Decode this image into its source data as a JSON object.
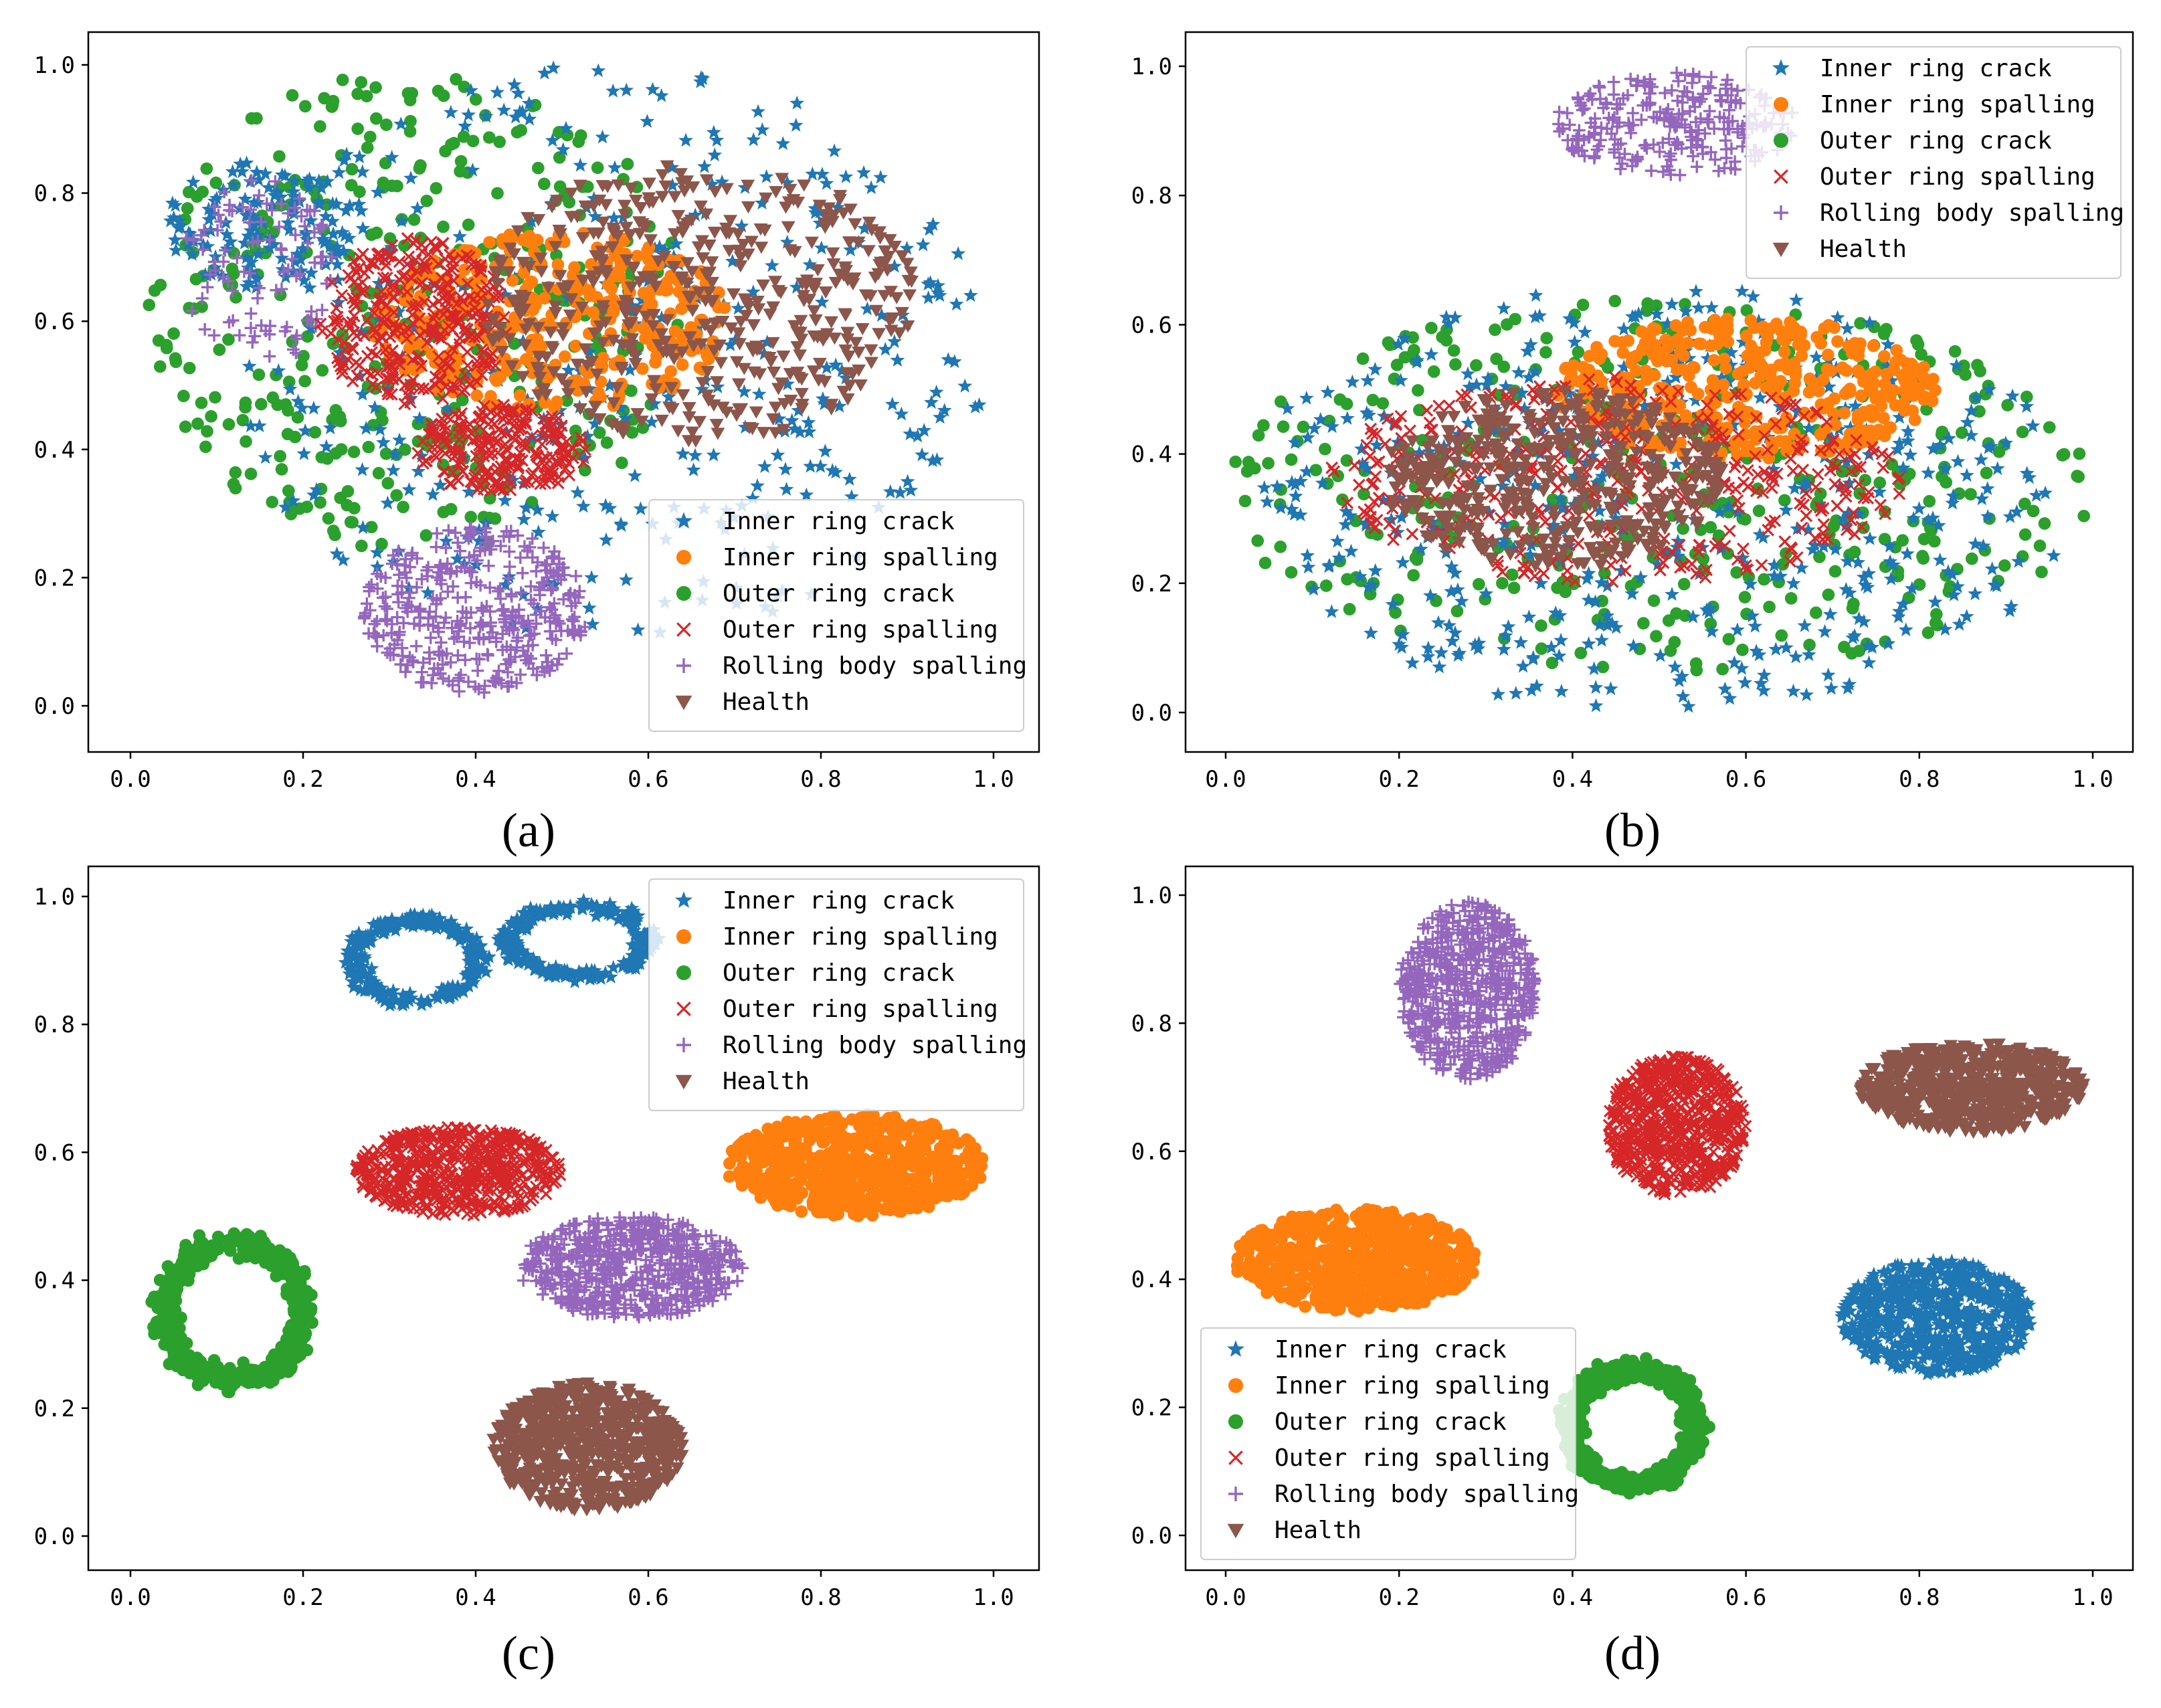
{
  "chart_data": [
    {
      "id": "a",
      "type": "scatter",
      "caption": "(a)",
      "xlim": [
        0.0,
        1.0
      ],
      "ylim": [
        0.0,
        1.0
      ],
      "xticks": [
        "0.0",
        "0.2",
        "0.4",
        "0.6",
        "0.8",
        "1.0"
      ],
      "yticks": [
        "0.0",
        "0.2",
        "0.4",
        "0.6",
        "0.8",
        "1.0"
      ],
      "legend_position": "lower-right",
      "clusters": [
        {
          "series": "Outer ring crack",
          "cx": 0.33,
          "cy": 0.62,
          "rx": 0.31,
          "ry": 0.38,
          "n": 380,
          "shape": "ellipse"
        },
        {
          "series": "Inner ring crack",
          "cx": 0.55,
          "cy": 0.55,
          "rx": 0.45,
          "ry": 0.45,
          "n": 420,
          "shape": "ellipse"
        },
        {
          "series": "Inner ring crack",
          "cx": 0.15,
          "cy": 0.75,
          "rx": 0.11,
          "ry": 0.1,
          "n": 120,
          "shape": "ellipse"
        },
        {
          "series": "Rolling body spalling",
          "cx": 0.15,
          "cy": 0.68,
          "rx": 0.09,
          "ry": 0.15,
          "n": 100,
          "shape": "ellipse"
        },
        {
          "series": "Rolling body spalling",
          "cx": 0.4,
          "cy": 0.15,
          "rx": 0.13,
          "ry": 0.13,
          "n": 380,
          "shape": "ellipse"
        },
        {
          "series": "Inner ring spalling",
          "cx": 0.49,
          "cy": 0.6,
          "rx": 0.21,
          "ry": 0.14,
          "n": 360,
          "shape": "ellipse"
        },
        {
          "series": "Outer ring spalling",
          "cx": 0.33,
          "cy": 0.6,
          "rx": 0.11,
          "ry": 0.13,
          "n": 320,
          "shape": "ellipse"
        },
        {
          "series": "Outer ring spalling",
          "cx": 0.43,
          "cy": 0.4,
          "rx": 0.1,
          "ry": 0.07,
          "n": 230,
          "shape": "ellipse"
        },
        {
          "series": "Health",
          "cx": 0.66,
          "cy": 0.63,
          "rx": 0.25,
          "ry": 0.22,
          "n": 460,
          "shape": "ellipse"
        }
      ]
    },
    {
      "id": "b",
      "type": "scatter",
      "caption": "(b)",
      "xlim": [
        0.0,
        1.0
      ],
      "ylim": [
        0.0,
        1.0
      ],
      "xticks": [
        "0.0",
        "0.2",
        "0.4",
        "0.6",
        "0.8",
        "1.0"
      ],
      "yticks": [
        "0.0",
        "0.2",
        "0.4",
        "0.6",
        "0.8",
        "1.0"
      ],
      "legend_position": "top-right",
      "clusters": [
        {
          "series": "Outer ring crack",
          "cx": 0.5,
          "cy": 0.35,
          "rx": 0.5,
          "ry": 0.29,
          "n": 420,
          "shape": "ellipse"
        },
        {
          "series": "Inner ring crack",
          "cx": 0.5,
          "cy": 0.33,
          "rx": 0.48,
          "ry": 0.33,
          "n": 520,
          "shape": "ellipse"
        },
        {
          "series": "Inner ring spalling",
          "cx": 0.6,
          "cy": 0.5,
          "rx": 0.22,
          "ry": 0.11,
          "n": 420,
          "shape": "ellipse"
        },
        {
          "series": "Outer ring spalling",
          "cx": 0.45,
          "cy": 0.36,
          "rx": 0.33,
          "ry": 0.16,
          "n": 420,
          "shape": "ellipse"
        },
        {
          "series": "Health",
          "cx": 0.38,
          "cy": 0.36,
          "rx": 0.2,
          "ry": 0.14,
          "n": 430,
          "shape": "ellipse"
        },
        {
          "series": "Rolling body spalling",
          "cx": 0.52,
          "cy": 0.91,
          "rx": 0.14,
          "ry": 0.08,
          "n": 260,
          "shape": "ellipse"
        }
      ]
    },
    {
      "id": "c",
      "type": "scatter",
      "caption": "(c)",
      "xlim": [
        0.0,
        1.0
      ],
      "ylim": [
        0.0,
        1.0
      ],
      "xticks": [
        "0.0",
        "0.2",
        "0.4",
        "0.6",
        "0.8",
        "1.0"
      ],
      "yticks": [
        "0.0",
        "0.2",
        "0.4",
        "0.6",
        "0.8",
        "1.0"
      ],
      "legend_position": "top-right",
      "clusters": [
        {
          "series": "Inner ring crack",
          "cx": 0.33,
          "cy": 0.9,
          "rx": 0.08,
          "ry": 0.07,
          "n": 260,
          "shape": "ring"
        },
        {
          "series": "Inner ring crack",
          "cx": 0.52,
          "cy": 0.93,
          "rx": 0.09,
          "ry": 0.06,
          "n": 240,
          "shape": "ring"
        },
        {
          "series": "Inner ring spalling",
          "cx": 0.84,
          "cy": 0.58,
          "rx": 0.15,
          "ry": 0.08,
          "n": 620,
          "shape": "ellipse"
        },
        {
          "series": "Outer ring crack",
          "cx": 0.12,
          "cy": 0.35,
          "rx": 0.09,
          "ry": 0.12,
          "n": 520,
          "shape": "ring"
        },
        {
          "series": "Outer ring spalling",
          "cx": 0.38,
          "cy": 0.57,
          "rx": 0.12,
          "ry": 0.07,
          "n": 560,
          "shape": "ellipse"
        },
        {
          "series": "Rolling body spalling",
          "cx": 0.58,
          "cy": 0.42,
          "rx": 0.13,
          "ry": 0.08,
          "n": 620,
          "shape": "ellipse"
        },
        {
          "series": "Health",
          "cx": 0.53,
          "cy": 0.14,
          "rx": 0.11,
          "ry": 0.1,
          "n": 640,
          "shape": "ellipse"
        }
      ]
    },
    {
      "id": "d",
      "type": "scatter",
      "caption": "(d)",
      "xlim": [
        0.0,
        1.0
      ],
      "ylim": [
        0.0,
        1.0
      ],
      "xticks": [
        "0.0",
        "0.2",
        "0.4",
        "0.6",
        "0.8",
        "1.0"
      ],
      "yticks": [
        "0.0",
        "0.2",
        "0.4",
        "0.6",
        "0.8",
        "1.0"
      ],
      "legend_position": "lower-left",
      "clusters": [
        {
          "series": "Rolling body spalling",
          "cx": 0.28,
          "cy": 0.85,
          "rx": 0.08,
          "ry": 0.14,
          "n": 620,
          "shape": "ellipse"
        },
        {
          "series": "Outer ring spalling",
          "cx": 0.52,
          "cy": 0.64,
          "rx": 0.08,
          "ry": 0.11,
          "n": 620,
          "shape": "ellipse"
        },
        {
          "series": "Health",
          "cx": 0.86,
          "cy": 0.7,
          "rx": 0.13,
          "ry": 0.07,
          "n": 620,
          "shape": "ellipse"
        },
        {
          "series": "Inner ring spalling",
          "cx": 0.15,
          "cy": 0.43,
          "rx": 0.14,
          "ry": 0.08,
          "n": 620,
          "shape": "ellipse"
        },
        {
          "series": "Inner ring crack",
          "cx": 0.82,
          "cy": 0.34,
          "rx": 0.11,
          "ry": 0.09,
          "n": 620,
          "shape": "ellipse"
        },
        {
          "series": "Outer ring crack",
          "cx": 0.47,
          "cy": 0.17,
          "rx": 0.08,
          "ry": 0.1,
          "n": 620,
          "shape": "ring"
        }
      ]
    }
  ],
  "legend": [
    {
      "label": "Inner ring crack",
      "marker": "star",
      "color": "#1f77b4"
    },
    {
      "label": "Inner ring spalling",
      "marker": "circle",
      "color": "#ff7f0e"
    },
    {
      "label": "Outer ring crack",
      "marker": "circle",
      "color": "#2ca02c"
    },
    {
      "label": "Outer ring spalling",
      "marker": "x",
      "color": "#d62728"
    },
    {
      "label": "Rolling body spalling",
      "marker": "plus",
      "color": "#9467bd"
    },
    {
      "label": "Health",
      "marker": "triangle-down",
      "color": "#8c564b"
    }
  ]
}
